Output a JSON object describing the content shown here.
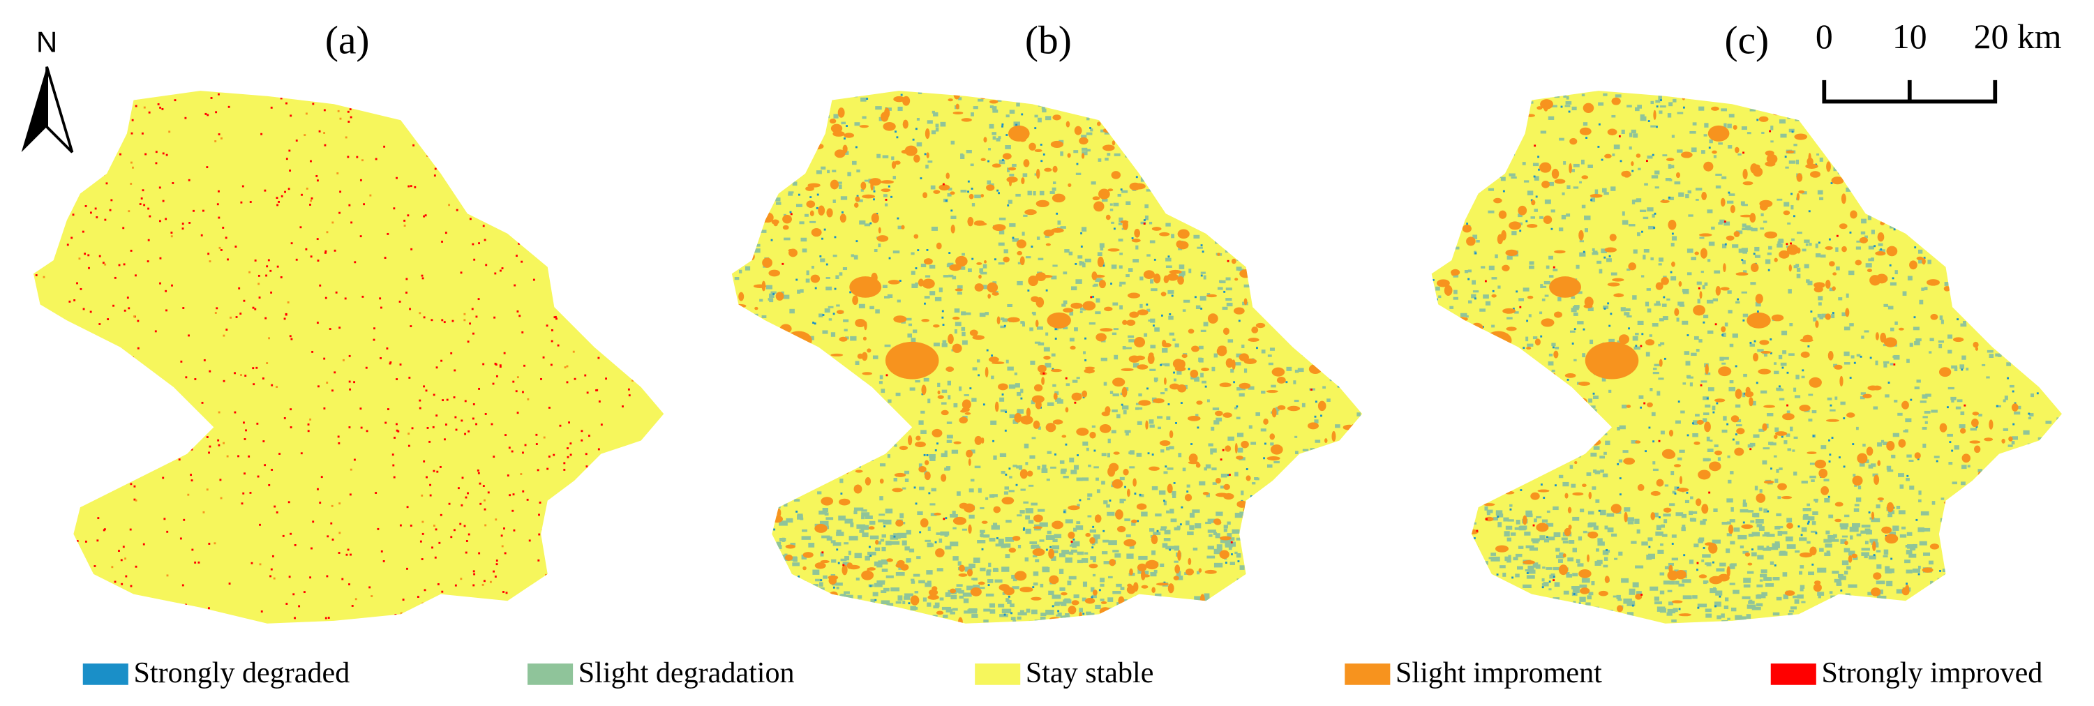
{
  "panels": [
    {
      "label": "(a)"
    },
    {
      "label": "(b)"
    },
    {
      "label": "(c)"
    }
  ],
  "north_arrow": {
    "label": "N"
  },
  "scale_bar": {
    "labels": [
      "0",
      "10",
      "20 km"
    ]
  },
  "legend": [
    {
      "name": "Strongly degraded",
      "color": "#1a8fc8"
    },
    {
      "name": "Slight degradation",
      "color": "#8fc49a"
    },
    {
      "name": "Stay stable",
      "color": "#f6f65c"
    },
    {
      "name": "Slight improment",
      "color": "#f7931e"
    },
    {
      "name": "Strongly improved",
      "color": "#ff0000"
    }
  ]
}
